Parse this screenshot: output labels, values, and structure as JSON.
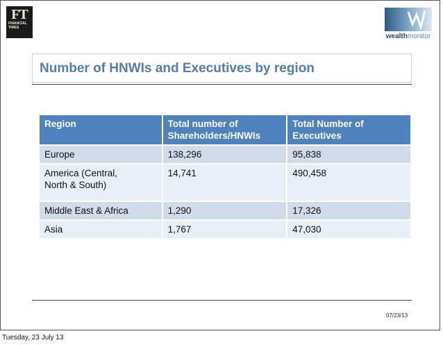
{
  "logos": {
    "ft_mark": "FT",
    "ft_line1": "FINANCIAL",
    "ft_line2": "TIMES",
    "wm_bold": "wealth",
    "wm_light": "monitor"
  },
  "title": "Number of HNWIs and Executives by region",
  "table": {
    "headers": [
      "Region",
      "Total number of Shareholders/HNWIs",
      "Total Number of Executives"
    ],
    "rows": [
      [
        "Europe",
        "138,296",
        "95,838"
      ],
      [
        "America (Central, North & South)",
        "14,741",
        "490,458"
      ],
      [
        "Middle East & Africa",
        "1,290",
        "17,326"
      ],
      [
        "Asia",
        "1,767",
        "47,030"
      ]
    ]
  },
  "page_date": "07/23/13",
  "footer_date": "Tuesday, 23 July 13",
  "colors": {
    "header_bg": "#4f81bd",
    "row_dark": "#d0dcea",
    "row_light": "#e9eff6",
    "title": "#4f7fb1"
  }
}
